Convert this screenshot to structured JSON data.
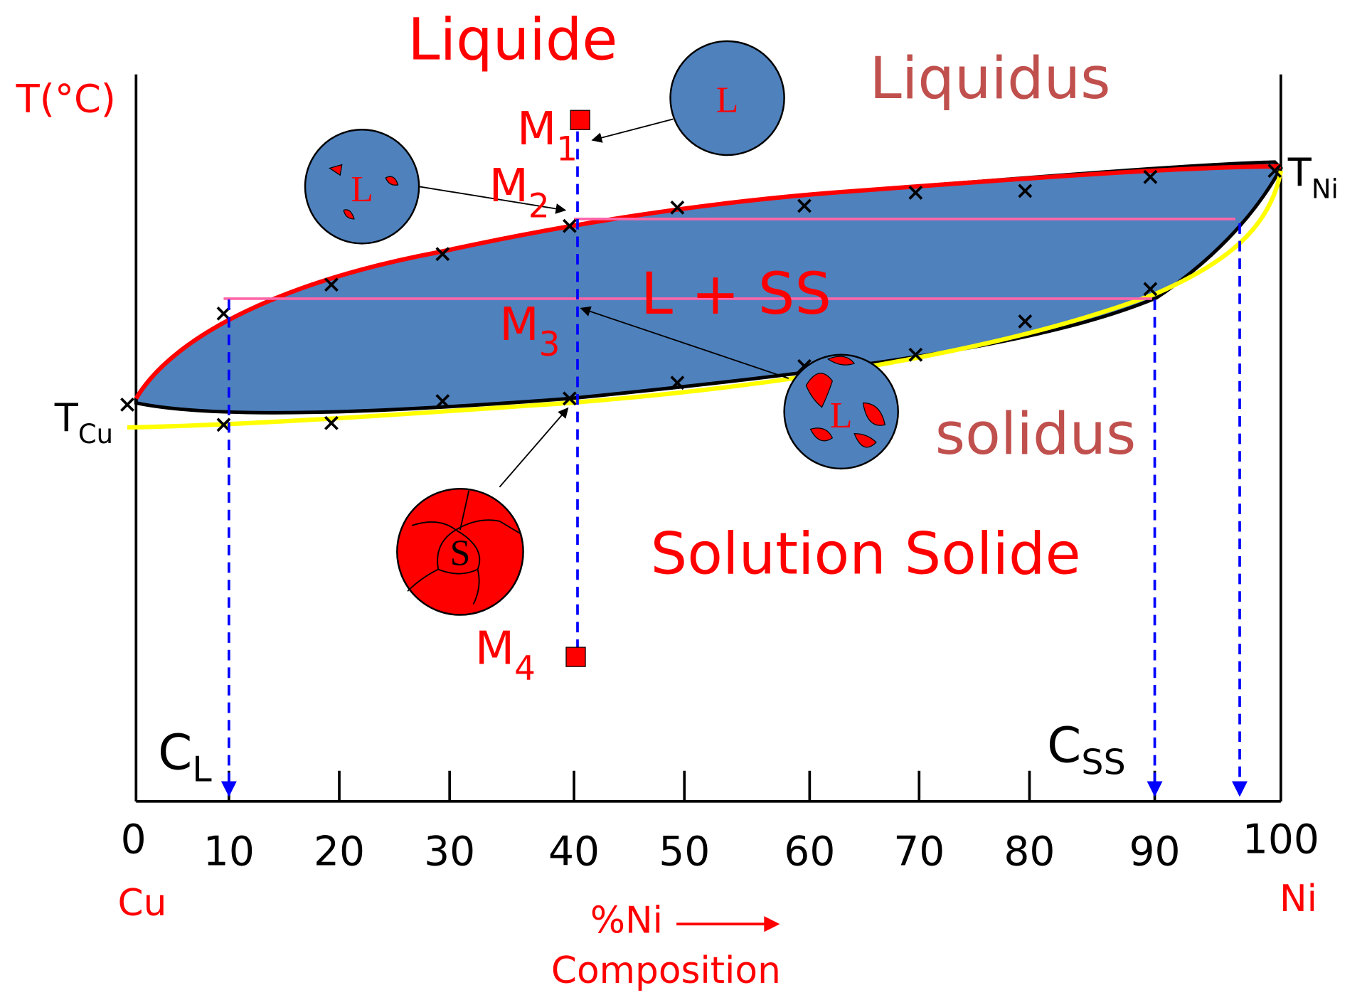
{
  "axis": {
    "y_label": "T(°C)",
    "x_ticks": [
      0,
      10,
      20,
      30,
      40,
      50,
      60,
      70,
      80,
      90,
      100
    ],
    "x_start": "Cu",
    "x_end": "Ni",
    "x_label": "%Ni",
    "x_caption": "Composition"
  },
  "regions": {
    "liquid": "Liquide",
    "two_phase": "L + SS",
    "solid": "Solution Solide"
  },
  "curves": {
    "liquidus": "Liquidus",
    "solidus": "solidus"
  },
  "points": [
    {
      "name": "M",
      "sub": "1"
    },
    {
      "name": "M",
      "sub": "2"
    },
    {
      "name": "M",
      "sub": "3"
    },
    {
      "name": "M",
      "sub": "4"
    }
  ],
  "temperatures": [
    {
      "name": "T",
      "sub": "Cu"
    },
    {
      "name": "T",
      "sub": "Ni"
    }
  ],
  "compositions": [
    {
      "name": "C",
      "sub": "L"
    },
    {
      "name": "C",
      "sub": "SS"
    }
  ],
  "microstructures": [
    "L",
    "L",
    "L",
    "S"
  ]
}
